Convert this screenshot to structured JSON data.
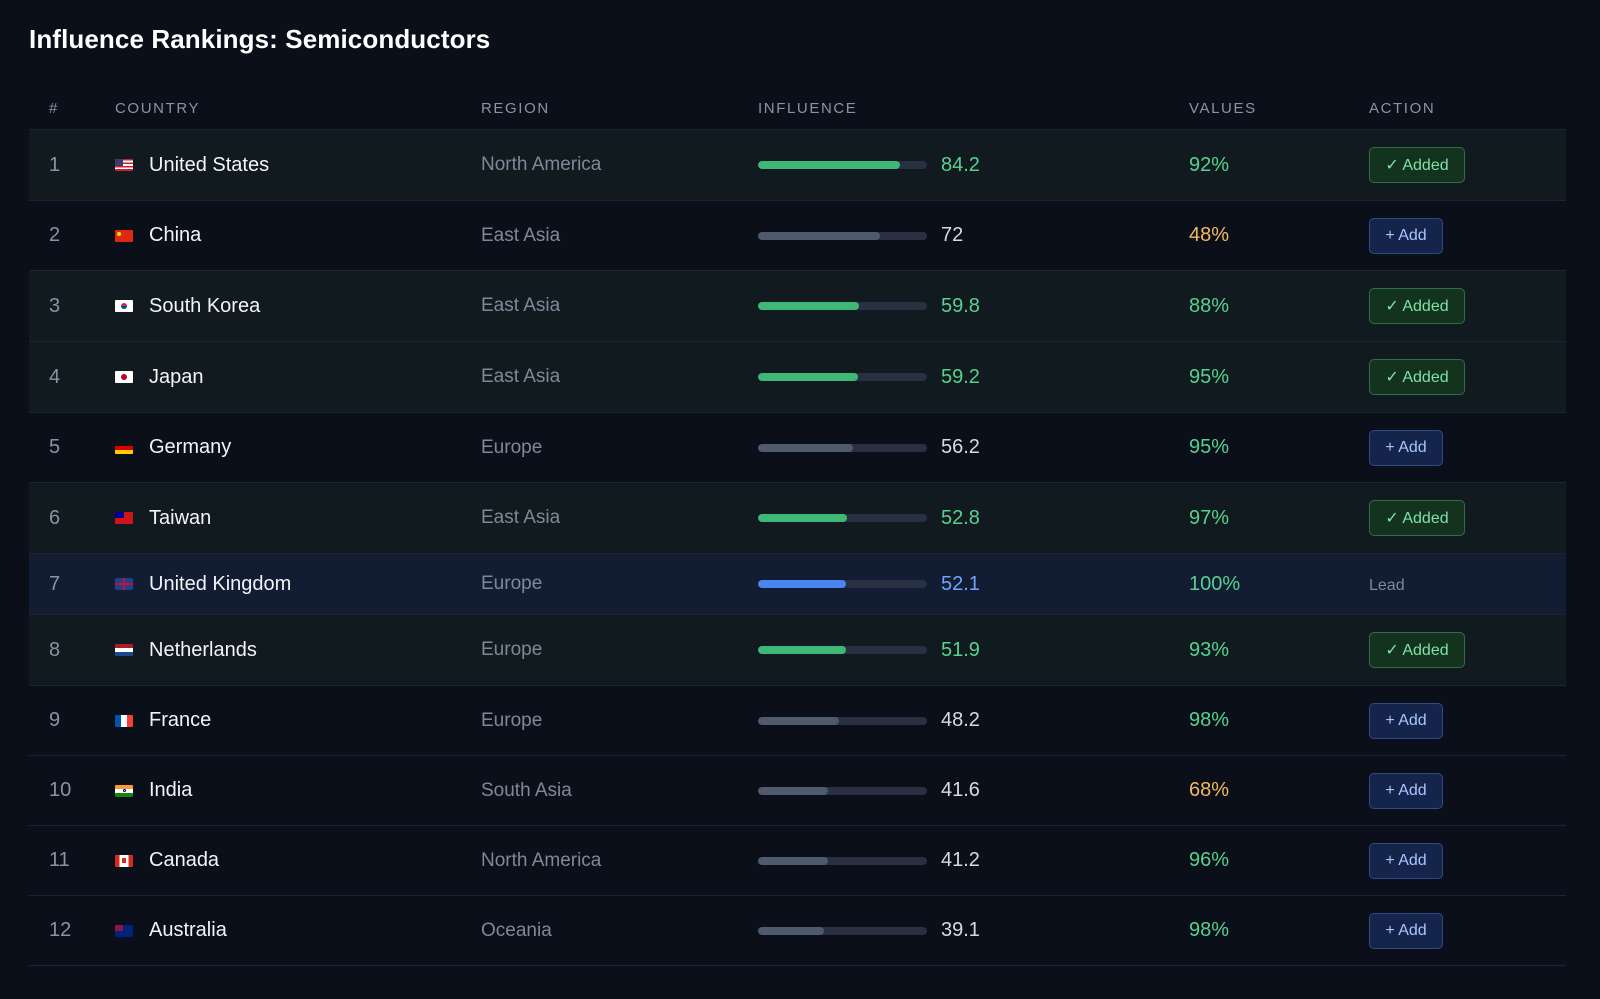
{
  "title": "Influence Rankings: Semiconductors",
  "headers": {
    "rank": "#",
    "country": "COUNTRY",
    "region": "REGION",
    "influence": "INFLUENCE",
    "values": "VALUES",
    "action": "ACTION"
  },
  "colors": {
    "green": "#3fb877",
    "blue": "#4a86f0",
    "gray": "#4f5a6d",
    "amber": "#f3b95f"
  },
  "rows": [
    {
      "rank": "1",
      "flag": "us-flag-icon",
      "country": "United States",
      "region": "North America",
      "influence": "84.2",
      "values": "92%",
      "status": "added",
      "action": "✓ Added"
    },
    {
      "rank": "2",
      "flag": "cn-flag-icon",
      "country": "China",
      "region": "East Asia",
      "influence": "72",
      "values": "48%",
      "status": "none",
      "action": "+ Add"
    },
    {
      "rank": "3",
      "flag": "kr-flag-icon",
      "country": "South Korea",
      "region": "East Asia",
      "influence": "59.8",
      "values": "88%",
      "status": "added",
      "action": "✓ Added"
    },
    {
      "rank": "4",
      "flag": "jp-flag-icon",
      "country": "Japan",
      "region": "East Asia",
      "influence": "59.2",
      "values": "95%",
      "status": "added",
      "action": "✓ Added"
    },
    {
      "rank": "5",
      "flag": "de-flag-icon",
      "country": "Germany",
      "region": "Europe",
      "influence": "56.2",
      "values": "95%",
      "status": "none",
      "action": "+ Add"
    },
    {
      "rank": "6",
      "flag": "tw-flag-icon",
      "country": "Taiwan",
      "region": "East Asia",
      "influence": "52.8",
      "values": "97%",
      "status": "added",
      "action": "✓ Added"
    },
    {
      "rank": "7",
      "flag": "gb-flag-icon",
      "country": "United Kingdom",
      "region": "Europe",
      "influence": "52.1",
      "values": "100%",
      "status": "lead",
      "action": "Lead"
    },
    {
      "rank": "8",
      "flag": "nl-flag-icon",
      "country": "Netherlands",
      "region": "Europe",
      "influence": "51.9",
      "values": "93%",
      "status": "added",
      "action": "✓ Added"
    },
    {
      "rank": "9",
      "flag": "fr-flag-icon",
      "country": "France",
      "region": "Europe",
      "influence": "48.2",
      "values": "98%",
      "status": "none",
      "action": "+ Add"
    },
    {
      "rank": "10",
      "flag": "in-flag-icon",
      "country": "India",
      "region": "South Asia",
      "influence": "41.6",
      "values": "68%",
      "status": "none",
      "action": "+ Add"
    },
    {
      "rank": "11",
      "flag": "ca-flag-icon",
      "country": "Canada",
      "region": "North America",
      "influence": "41.2",
      "values": "96%",
      "status": "none",
      "action": "+ Add"
    },
    {
      "rank": "12",
      "flag": "au-flag-icon",
      "country": "Australia",
      "region": "Oceania",
      "influence": "39.1",
      "values": "98%",
      "status": "none",
      "action": "+ Add"
    }
  ]
}
